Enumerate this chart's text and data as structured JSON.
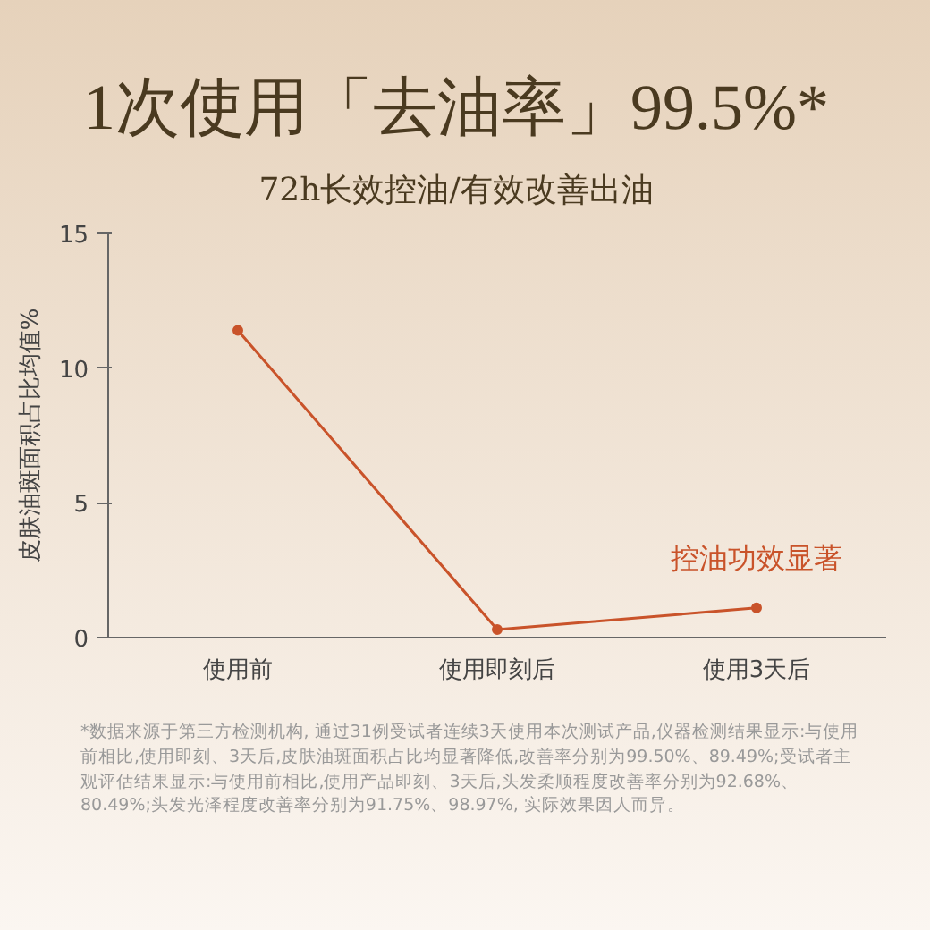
{
  "chart_data": {
    "type": "line",
    "title": "1次使用「去油率」99.5%*",
    "subtitle": "72h长效控油/有效改善出油",
    "ylabel": "皮肤油斑面积占比均值%",
    "categories": [
      "使用前",
      "使用即刻后",
      "使用3天后"
    ],
    "series": [
      {
        "color": "#c9532a",
        "values": [
          11.4,
          0.3,
          1.1
        ]
      }
    ],
    "ylim": [
      0,
      15
    ],
    "yticks": [
      0,
      5,
      10,
      15
    ],
    "grid": false,
    "marker": "circle",
    "line_style": "solid",
    "annotations": [
      "控油功效显著",
      "*数据来源于第三方检测机构, 通过31例受试者连续3天使用本次测试产品,仪器检测结果显示:与使用前相比,使用即刻、3天后,皮肤油斑面积占比均显著降低,改善率分别为99.50%、89.49%;受试者主观评估结果显示:与使用前相比,使用产品即刻、3天后,头发柔顺程度改善率分别为92.68%、80.49%;头发光泽程度改善率分别为91.75%、98.97%, 实际效果因人而异。"
    ]
  }
}
